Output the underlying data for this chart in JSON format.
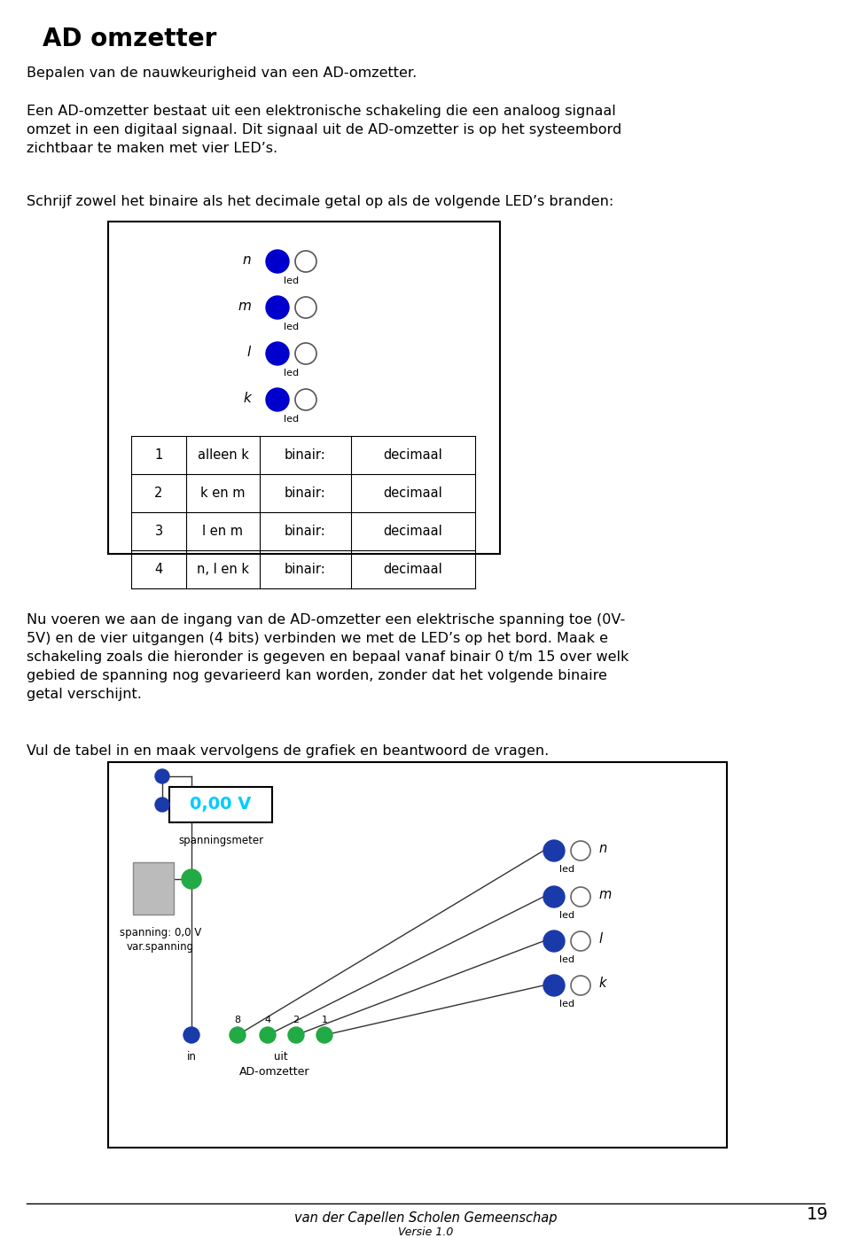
{
  "title": "AD omzetter",
  "page_bg": "#ffffff",
  "body_text1": "Bepalen van de nauwkeurigheid van een AD-omzetter.",
  "body_text2": "Een AD-omzetter bestaat uit een elektronische schakeling die een analoog signaal\nomzet in een digitaal signaal. Dit signaal uit de AD-omzetter is op het systeembord\nzichtbaar te maken met vier LED’s.",
  "body_text3": "Schrijf zowel het binaire als het decimale getal op als de volgende LED’s branden:",
  "led_labels": [
    "n",
    "m",
    "l",
    "k"
  ],
  "led_blue": "#0000cc",
  "led_outline": "#555555",
  "led_text": "led",
  "table_rows": [
    [
      "1",
      "alleen k",
      "binair:",
      "decimaal"
    ],
    [
      "2",
      "k en m",
      "binair:",
      "decimaal"
    ],
    [
      "3",
      "l en m",
      "binair:",
      "decimaal"
    ],
    [
      "4",
      "n, l en k",
      "binair:",
      "decimaal"
    ]
  ],
  "body_text4": "Nu voeren we aan de ingang van de AD-omzetter een elektrische spanning toe (0V-\n5V) en de vier uitgangen (4 bits) verbinden we met de LED’s op het bord. Maak e\nschakeling zoals die hieronder is gegeven en bepaal vanaf binair 0 t/m 15 over welk\ngebied de spanning nog gevarieerd kan worden, zonder dat het volgende binaire\ngetal verschijnt.",
  "body_text5": "Vul de tabel in en maak vervolgens de grafiek en beantwoord de vragen.",
  "footer_text": "van der Capellen Scholen Gemeenschap",
  "footer_sub": "Versie 1.0",
  "page_num": "19",
  "blue_dot": "#1a3aaa",
  "green_dot": "#22aa44",
  "gray_box": "#aaaaaa",
  "voltmeter_text": "0,00 V",
  "voltmeter_color": "#00ccff",
  "spanningsmeter_label": "spanningsmeter",
  "spanning_label": "spanning: 0,0 V\nvar.spanning",
  "ad_label": "AD-omzetter",
  "in_label": "in",
  "uit_label": "uit",
  "adc_bits": [
    "8",
    "4",
    "2",
    "1"
  ],
  "right_labels": [
    "n",
    "m",
    "l",
    "k"
  ]
}
